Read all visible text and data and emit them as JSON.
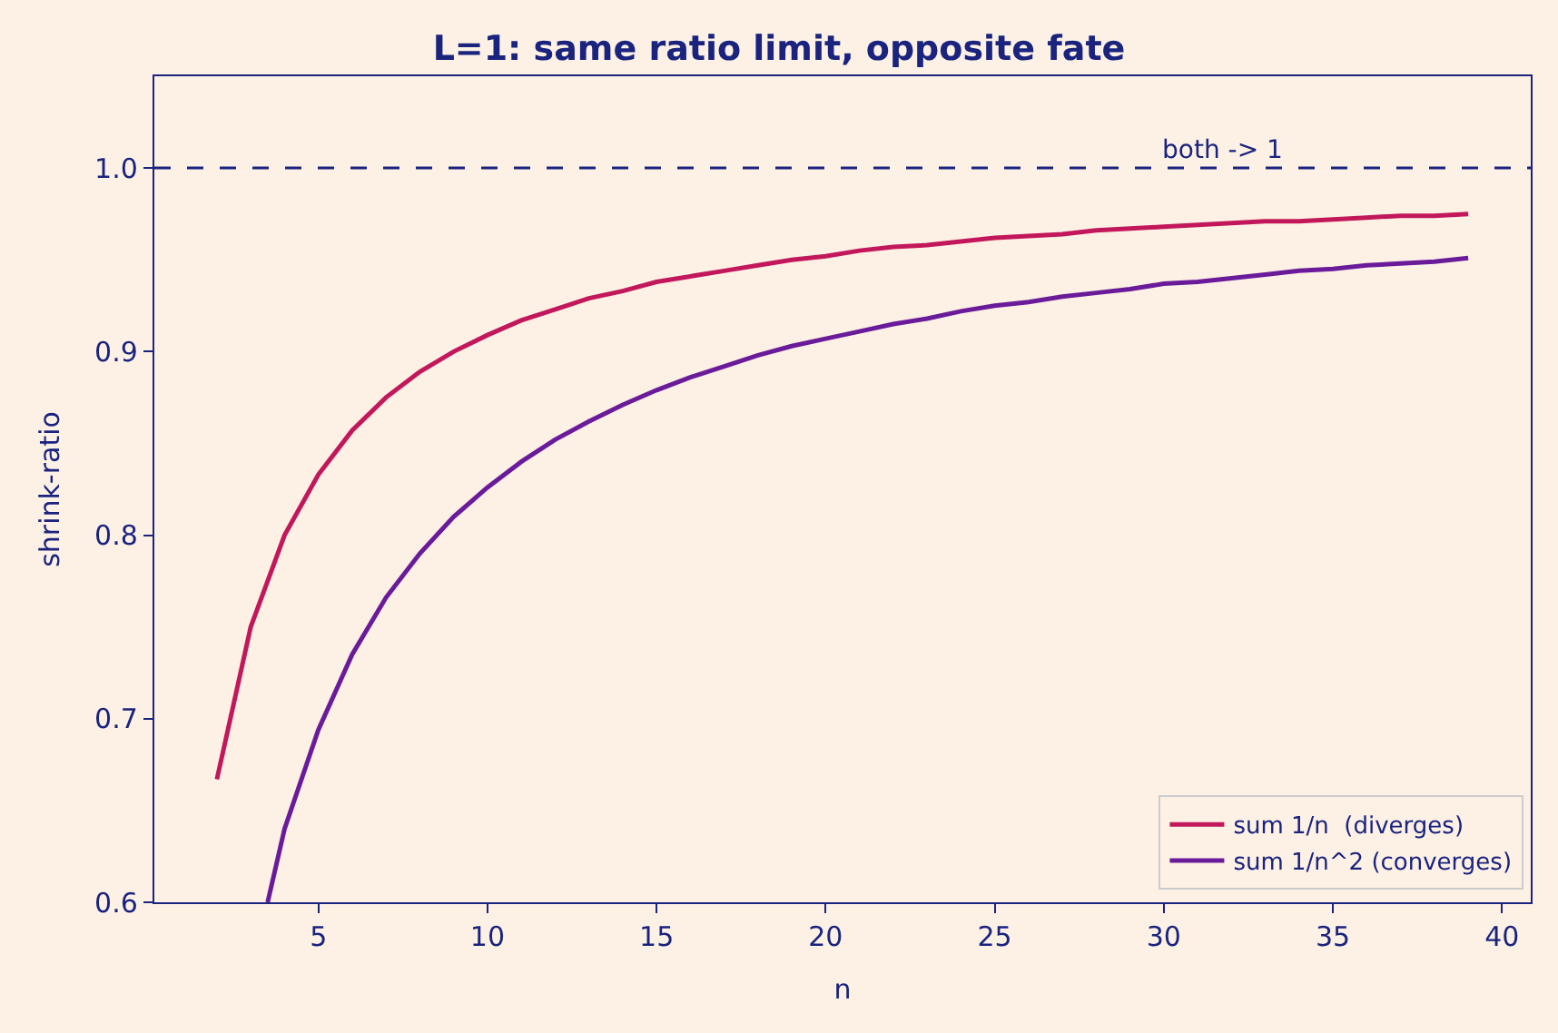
{
  "chart_data": {
    "type": "line",
    "title": "L=1: same ratio limit, opposite fate",
    "xlabel": "n",
    "ylabel": "shrink-ratio",
    "x": [
      2,
      3,
      4,
      5,
      6,
      7,
      8,
      9,
      10,
      11,
      12,
      13,
      14,
      15,
      16,
      17,
      18,
      19,
      20,
      21,
      22,
      23,
      24,
      25,
      26,
      27,
      28,
      29,
      30,
      31,
      32,
      33,
      34,
      35,
      36,
      37,
      38,
      39
    ],
    "series": [
      {
        "name": "sum 1/n  (diverges)",
        "color": "#c2185b",
        "values": [
          0.667,
          0.75,
          0.8,
          0.833,
          0.857,
          0.875,
          0.889,
          0.9,
          0.909,
          0.917,
          0.923,
          0.929,
          0.933,
          0.938,
          0.941,
          0.944,
          0.947,
          0.95,
          0.952,
          0.955,
          0.957,
          0.958,
          0.96,
          0.962,
          0.963,
          0.964,
          0.966,
          0.967,
          0.968,
          0.969,
          0.97,
          0.971,
          0.971,
          0.972,
          0.973,
          0.974,
          0.974,
          0.975
        ]
      },
      {
        "name": "sum 1/n^2 (converges)",
        "color": "#6a1b9a",
        "x": [
          3.5,
          4,
          5,
          6,
          7,
          8,
          9,
          10,
          11,
          12,
          13,
          14,
          15,
          16,
          17,
          18,
          19,
          20,
          21,
          22,
          23,
          24,
          25,
          26,
          27,
          28,
          29,
          30,
          31,
          32,
          33,
          34,
          35,
          36,
          37,
          38,
          39
        ],
        "values": [
          0.6,
          0.64,
          0.694,
          0.735,
          0.766,
          0.79,
          0.81,
          0.826,
          0.84,
          0.852,
          0.862,
          0.871,
          0.879,
          0.886,
          0.892,
          0.898,
          0.903,
          0.907,
          0.911,
          0.915,
          0.918,
          0.922,
          0.925,
          0.927,
          0.93,
          0.932,
          0.934,
          0.937,
          0.938,
          0.94,
          0.942,
          0.944,
          0.945,
          0.947,
          0.948,
          0.949,
          0.951
        ]
      }
    ],
    "xlim": [
      0.15,
      40.85
    ],
    "xticks": [
      5,
      10,
      15,
      20,
      25,
      30,
      35,
      40
    ],
    "ylim": [
      0.6,
      1.05
    ],
    "yticks": [
      0.6,
      0.7,
      0.8,
      0.9,
      {
        "value": 1,
        "label": "1.0"
      }
    ],
    "ref_lines": [
      {
        "axis": "y",
        "value": 1.0,
        "label": "both -> 1",
        "color": "#1a237e",
        "line_style": "dashed"
      }
    ],
    "grid": false,
    "legend": "bottom right",
    "line_style": "solid",
    "marker": "none"
  }
}
